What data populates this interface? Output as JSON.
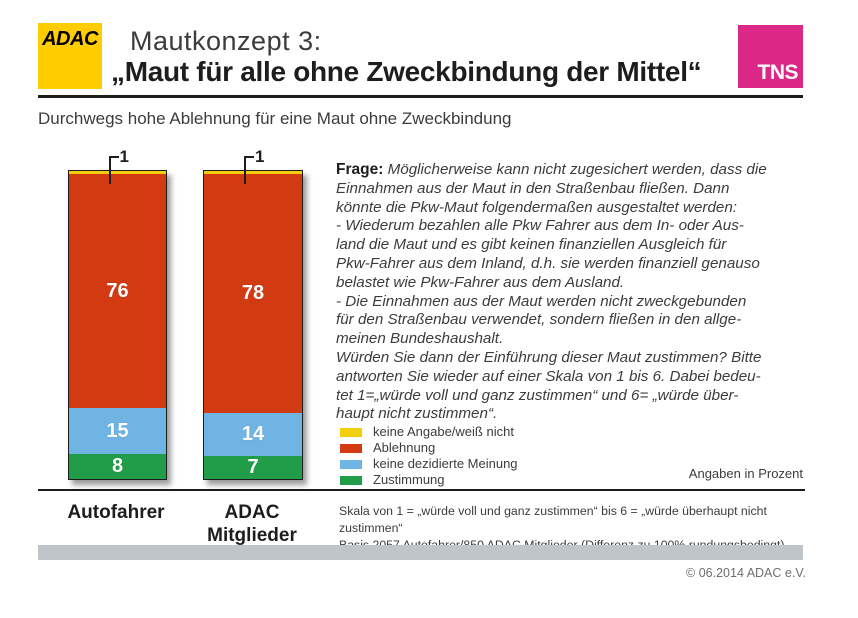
{
  "header": {
    "adac_logo": "ADAC",
    "title": "Mautkonzept 3:",
    "subtitle": "„Maut für alle ohne Zweckbindung der Mittel“",
    "tns_logo": "TNS"
  },
  "subheading": "Durchwegs hohe Ablehnung für eine Maut ohne Zweckbindung",
  "question": {
    "label": "Frage:",
    "body": "Möglicherweise kann nicht zugesichert werden, dass die\nEinnahmen aus der Maut in den Straßenbau fließen. Dann\nkönnte die Pkw-Maut folgendermaßen ausgestaltet werden:\n- Wiederum bezahlen alle Pkw Fahrer aus dem In- oder Aus-\nland die Maut und es gibt keinen finanziellen Ausgleich für\nPkw-Fahrer aus dem Inland, d.h. sie werden finanziell genauso\nbelastet wie Pkw-Fahrer aus dem Ausland.\n- Die Einnahmen aus der Maut werden nicht zweckgebunden\nfür den Straßenbau verwendet, sondern fließen in den allge-\nmeinen Bundeshaushalt.\nWürden Sie dann der Einführung dieser Maut zustimmen? Bitte\nantworten Sie wieder auf einer Skala von 1 bis 6. Dabei bedeu-\ntet  1=„würde voll und ganz zustimmen“ und 6= „würde über-\nhaupt nicht zustimmen“."
  },
  "chart_data": {
    "type": "bar",
    "variant": "stacked-vertical-percent",
    "title": "Mautkonzept 3: „Maut für alle ohne Zweckbindung der Mittel“",
    "categories": [
      "Autofahrer",
      "ADAC\nMitglieder"
    ],
    "series": [
      {
        "name": "keine Angabe/weiß nicht",
        "color": "#F2CE0D",
        "values": [
          1,
          1
        ]
      },
      {
        "name": "Ablehnung",
        "color": "#D23B12",
        "values": [
          76,
          78
        ]
      },
      {
        "name": "keine dezidierte Meinung",
        "color": "#6FB4E2",
        "values": [
          15,
          14
        ]
      },
      {
        "name": "Zustimmung",
        "color": "#219D49",
        "values": [
          8,
          7
        ]
      }
    ],
    "ylim": [
      0,
      100
    ],
    "legend_position": "right",
    "grid": false,
    "callout": {
      "series": "keine Angabe/weiß nicht",
      "label": "1"
    }
  },
  "notes": {
    "unit": "Angaben in Prozent",
    "scale": "Skala von 1 = „würde voll und ganz zustimmen“ bis 6 = „würde überhaupt nicht zustimmen“",
    "basis": "Basis 2057 Autofahrer/850 ADAC Mitglieder (Differenz zu 100% rundungsbedingt)"
  },
  "footer": {
    "copyright": "© 06.2014  ADAC e.V."
  },
  "colors": {
    "adac_yellow": "#FFCC00",
    "tns_magenta": "#DB2785",
    "rule_dark": "#1D1D1B",
    "gray_band": "#BFC5C9"
  }
}
